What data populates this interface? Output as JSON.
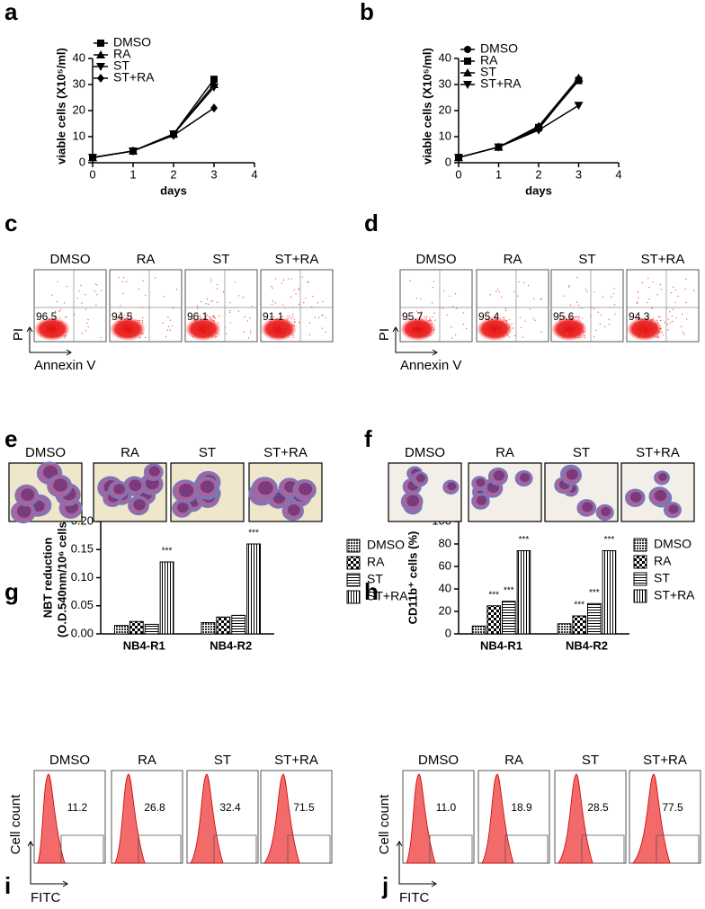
{
  "chart_data": [
    {
      "type": "line",
      "panel_label": "a",
      "xlabel": "days",
      "ylabel": "viable cells (X10⁵/ml)",
      "x": [
        0,
        1,
        2,
        3
      ],
      "xlim": [
        0,
        4
      ],
      "xticks": [
        0,
        1,
        2,
        3,
        4
      ],
      "ylim": [
        0,
        40
      ],
      "yticks": [
        0,
        10,
        20,
        30,
        40
      ],
      "legend": "upper left",
      "series": [
        {
          "name": "DMSO",
          "color": "#000000",
          "marker": "square",
          "values": [
            2,
            4.5,
            11,
            32
          ]
        },
        {
          "name": "RA",
          "color": "#000000",
          "marker": "triangle",
          "values": [
            2,
            4.5,
            11,
            30
          ]
        },
        {
          "name": "ST",
          "color": "#000000",
          "marker": "triangle-down",
          "values": [
            2,
            4.5,
            11,
            29
          ]
        },
        {
          "name": "ST+RA",
          "color": "#000000",
          "marker": "diamond",
          "values": [
            2,
            4.5,
            10.5,
            21
          ]
        }
      ]
    },
    {
      "type": "line",
      "panel_label": "b",
      "xlabel": "days",
      "ylabel": "viable cells (X10⁵/ml)",
      "x": [
        0,
        1,
        2,
        3
      ],
      "xlim": [
        0,
        4
      ],
      "xticks": [
        0,
        1,
        2,
        3,
        4
      ],
      "ylim": [
        0,
        40
      ],
      "yticks": [
        0,
        10,
        20,
        30,
        40
      ],
      "legend": "upper left",
      "series": [
        {
          "name": "DMSO",
          "color": "#000000",
          "marker": "circle",
          "values": [
            2,
            6,
            13,
            32
          ]
        },
        {
          "name": "RA",
          "color": "#000000",
          "marker": "square",
          "values": [
            2,
            6,
            13.5,
            31.5
          ]
        },
        {
          "name": "ST",
          "color": "#000000",
          "marker": "triangle",
          "values": [
            2,
            6,
            14,
            32.5
          ]
        },
        {
          "name": "ST+RA",
          "color": "#000000",
          "marker": "triangle-down",
          "values": [
            2,
            6,
            12.5,
            22
          ]
        }
      ]
    },
    {
      "type": "bar",
      "panel_label": "g",
      "ylabel": [
        "NBT reduction",
        "(O.D.540nm/10⁶ cells)"
      ],
      "categories": [
        "NB4-R1",
        "NB4-R2"
      ],
      "ylim": [
        0,
        0.2
      ],
      "yticks": [
        {
          "value": 0,
          "label": "0.00"
        },
        {
          "value": 0.05,
          "label": "0.05"
        },
        {
          "value": 0.1,
          "label": "0.10"
        },
        {
          "value": 0.15,
          "label": "0.15"
        },
        {
          "value": 0.2,
          "label": "0.20"
        }
      ],
      "legend": "right",
      "series": [
        {
          "name": "DMSO",
          "color": "#000000",
          "pattern": "dots",
          "values": [
            0.015,
            0.02
          ],
          "significance": [
            null,
            null
          ]
        },
        {
          "name": "RA",
          "color": "#000000",
          "pattern": "checker",
          "values": [
            0.022,
            0.03
          ],
          "significance": [
            null,
            null
          ]
        },
        {
          "name": "ST",
          "color": "#000000",
          "pattern": "hlines",
          "values": [
            0.017,
            0.033
          ],
          "significance": [
            null,
            null
          ]
        },
        {
          "name": "ST+RA",
          "color": "#000000",
          "pattern": "vlines",
          "values": [
            0.128,
            0.16
          ],
          "significance": [
            "***",
            "***"
          ]
        }
      ]
    },
    {
      "type": "bar",
      "panel_label": "h",
      "ylabel": [
        "CD11b⁺ cells (%)"
      ],
      "categories": [
        "NB4-R1",
        "NB4-R2"
      ],
      "ylim": [
        0,
        100
      ],
      "yticks": [
        0,
        20,
        40,
        60,
        80,
        100
      ],
      "legend": "right",
      "series": [
        {
          "name": "DMSO",
          "color": "#000000",
          "pattern": "dots",
          "values": [
            7,
            9
          ],
          "significance": [
            null,
            null
          ]
        },
        {
          "name": "RA",
          "color": "#000000",
          "pattern": "checker",
          "values": [
            25,
            16
          ],
          "significance": [
            "***",
            "***"
          ]
        },
        {
          "name": "ST",
          "color": "#000000",
          "pattern": "hlines",
          "values": [
            29,
            27
          ],
          "significance": [
            "***",
            "***"
          ]
        },
        {
          "name": "ST+RA",
          "color": "#000000",
          "pattern": "vlines",
          "values": [
            74,
            74
          ],
          "significance": [
            "***",
            "***"
          ]
        }
      ]
    }
  ],
  "flow_panels": [
    {
      "panel_label": "c",
      "conditions": [
        "DMSO",
        "RA",
        "ST",
        "ST+RA"
      ],
      "values": [
        96.5,
        94.5,
        96.1,
        91.1
      ],
      "y_label": "PI",
      "x_label": "Annexin V"
    },
    {
      "panel_label": "d",
      "conditions": [
        "DMSO",
        "RA",
        "ST",
        "ST+RA"
      ],
      "values": [
        95.7,
        95.4,
        95.6,
        94.3
      ],
      "y_label": "PI",
      "x_label": "Annexin V"
    }
  ],
  "cell_panels": [
    {
      "panel_label": "e",
      "conditions": [
        "DMSO",
        "RA",
        "ST",
        "ST+RA"
      ]
    },
    {
      "panel_label": "f",
      "conditions": [
        "DMSO",
        "RA",
        "ST",
        "ST+RA"
      ]
    }
  ],
  "histogram_panels": [
    {
      "panel_label": "i",
      "conditions": [
        "DMSO",
        "RA",
        "ST",
        "ST+RA"
      ],
      "values": [
        11.2,
        26.8,
        32.4,
        71.5
      ],
      "y_label": "Cell count",
      "x_label": "FITC"
    },
    {
      "panel_label": "j",
      "conditions": [
        "DMSO",
        "RA",
        "ST",
        "ST+RA"
      ],
      "values": [
        11.0,
        18.9,
        28.5,
        77.5
      ],
      "value_labels": [
        "11.0",
        "18.9",
        "28.5",
        "77.5"
      ],
      "y_label": "Cell count",
      "x_label": "FITC"
    }
  ]
}
